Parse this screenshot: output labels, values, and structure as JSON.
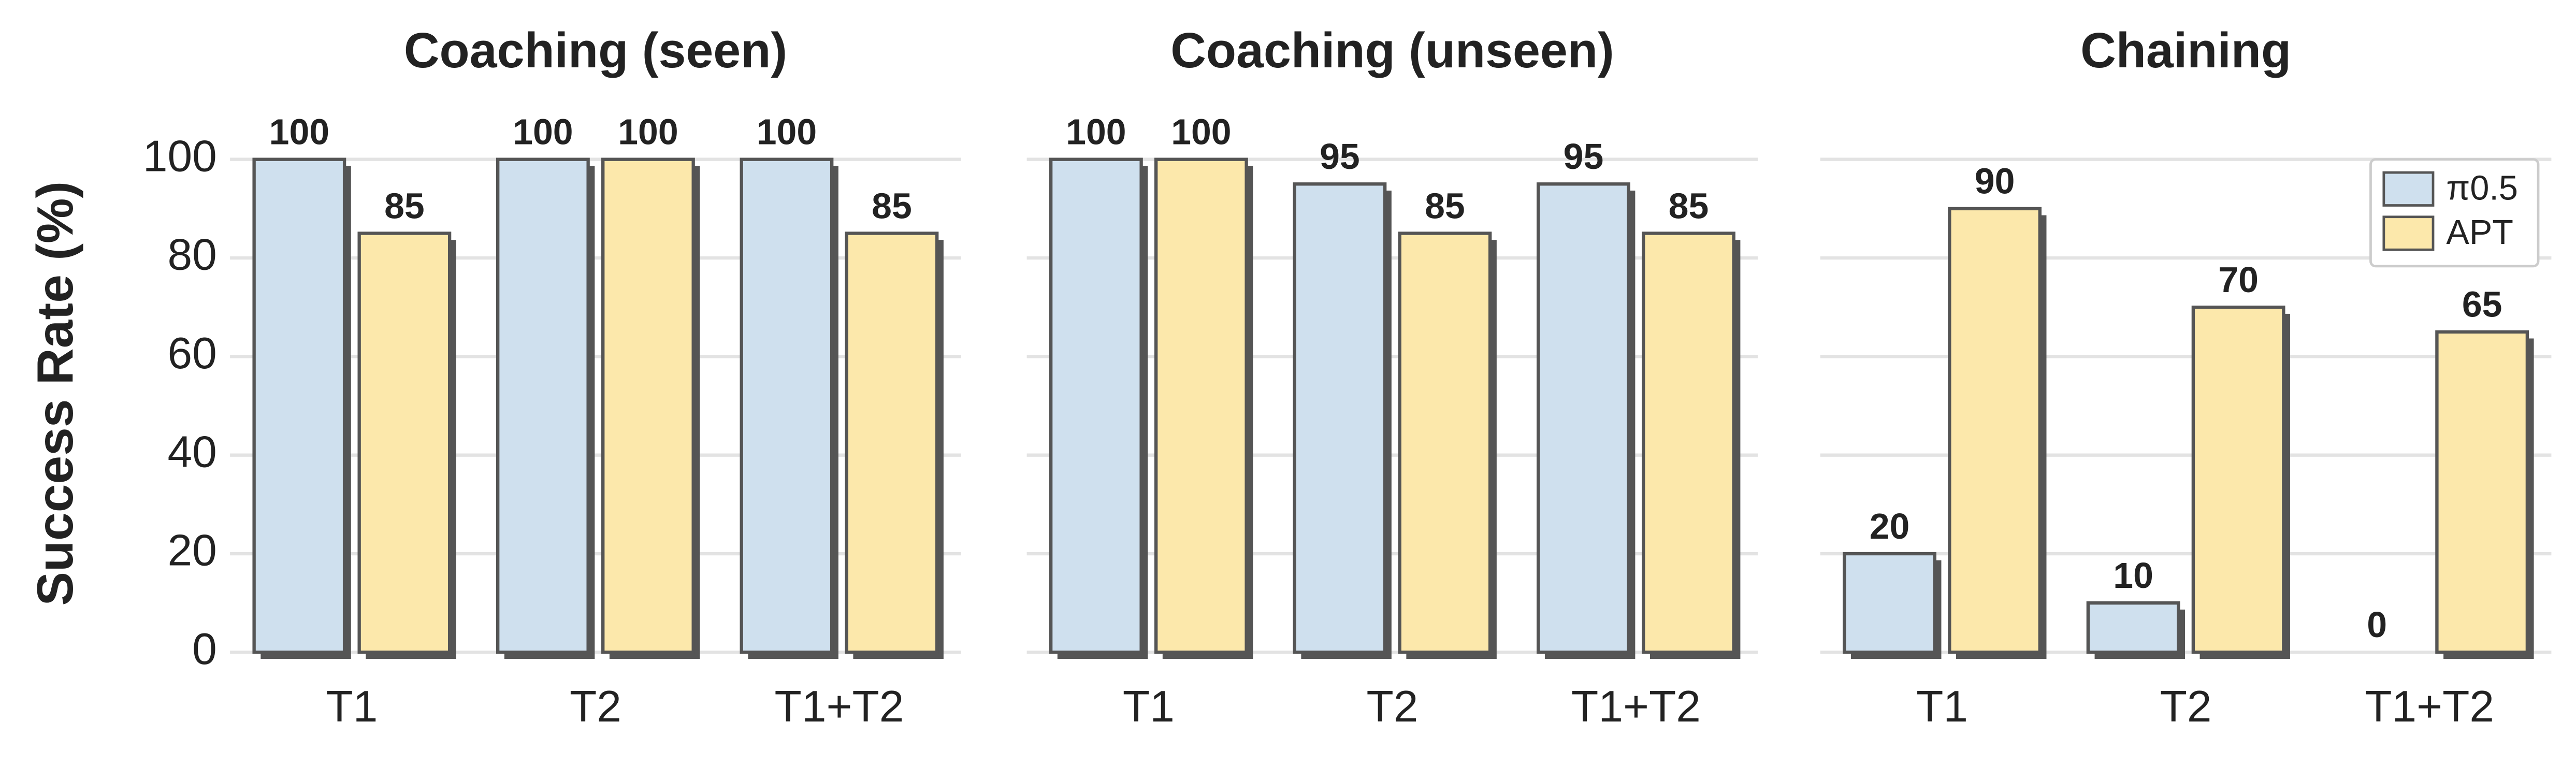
{
  "chart_data": [
    {
      "type": "bar",
      "title": "Coaching (seen)",
      "ylabel": "Success Rate (%)",
      "categories": [
        "T1",
        "T2",
        "T1+T2"
      ],
      "series": [
        {
          "name": "π0.5",
          "color": "#cfe0ee",
          "values": [
            100,
            100,
            100
          ]
        },
        {
          "name": "APT",
          "color": "#fce8ab",
          "values": [
            85,
            100,
            85
          ]
        }
      ],
      "ylim": [
        0,
        105
      ],
      "yticks": [
        0,
        20,
        40,
        60,
        80,
        100
      ],
      "grid": true
    },
    {
      "type": "bar",
      "title": "Coaching (unseen)",
      "categories": [
        "T1",
        "T2",
        "T1+T2"
      ],
      "series": [
        {
          "name": "π0.5",
          "color": "#cfe0ee",
          "values": [
            100,
            95,
            95
          ]
        },
        {
          "name": "APT",
          "color": "#fce8ab",
          "values": [
            100,
            85,
            85
          ]
        }
      ],
      "ylim": [
        0,
        105
      ],
      "yticks": [
        0,
        20,
        40,
        60,
        80,
        100
      ],
      "grid": true
    },
    {
      "type": "bar",
      "title": "Chaining",
      "categories": [
        "T1",
        "T2",
        "T1+T2"
      ],
      "series": [
        {
          "name": "π0.5",
          "color": "#cfe0ee",
          "values": [
            20,
            10,
            0
          ]
        },
        {
          "name": "APT",
          "color": "#fce8ab",
          "values": [
            90,
            70,
            65
          ]
        }
      ],
      "ylim": [
        0,
        105
      ],
      "yticks": [
        0,
        20,
        40,
        60,
        80,
        100
      ],
      "grid": true,
      "legend": "upper right"
    }
  ]
}
